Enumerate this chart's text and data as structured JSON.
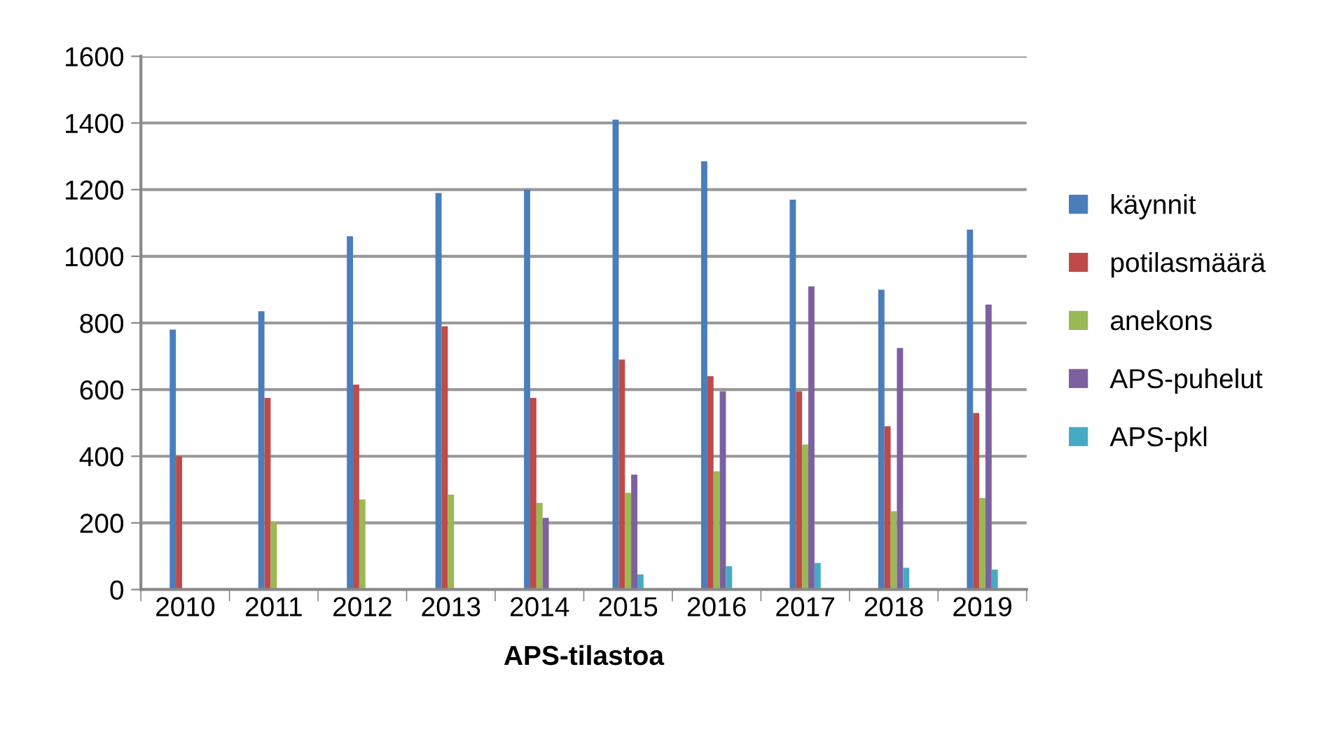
{
  "chart_data": {
    "type": "bar",
    "xlabel": "APS-tilastoa",
    "categories": [
      "2010",
      "2011",
      "2012",
      "2013",
      "2014",
      "2015",
      "2016",
      "2017",
      "2018",
      "2019"
    ],
    "series": [
      {
        "name": "käynnit",
        "color": "#4a7ebb",
        "values": [
          780,
          835,
          1060,
          1190,
          1200,
          1410,
          1285,
          1170,
          900,
          1080
        ]
      },
      {
        "name": "potilasmäärä",
        "color": "#be4b48",
        "values": [
          400,
          575,
          615,
          790,
          575,
          690,
          640,
          595,
          490,
          530
        ]
      },
      {
        "name": "anekons",
        "color": "#98b954",
        "values": [
          null,
          205,
          270,
          285,
          260,
          290,
          355,
          435,
          235,
          275
        ]
      },
      {
        "name": "APS-puhelut",
        "color": "#7d60a0",
        "values": [
          null,
          null,
          null,
          null,
          215,
          345,
          595,
          910,
          725,
          855
        ]
      },
      {
        "name": "APS-pkl",
        "color": "#46aac5",
        "values": [
          null,
          null,
          null,
          null,
          null,
          45,
          70,
          80,
          65,
          60
        ]
      }
    ],
    "ylim": [
      0,
      1600
    ],
    "yticks": [
      0,
      200,
      400,
      600,
      800,
      1000,
      1200,
      1400,
      1600
    ],
    "grid": "y",
    "legend": "right"
  }
}
